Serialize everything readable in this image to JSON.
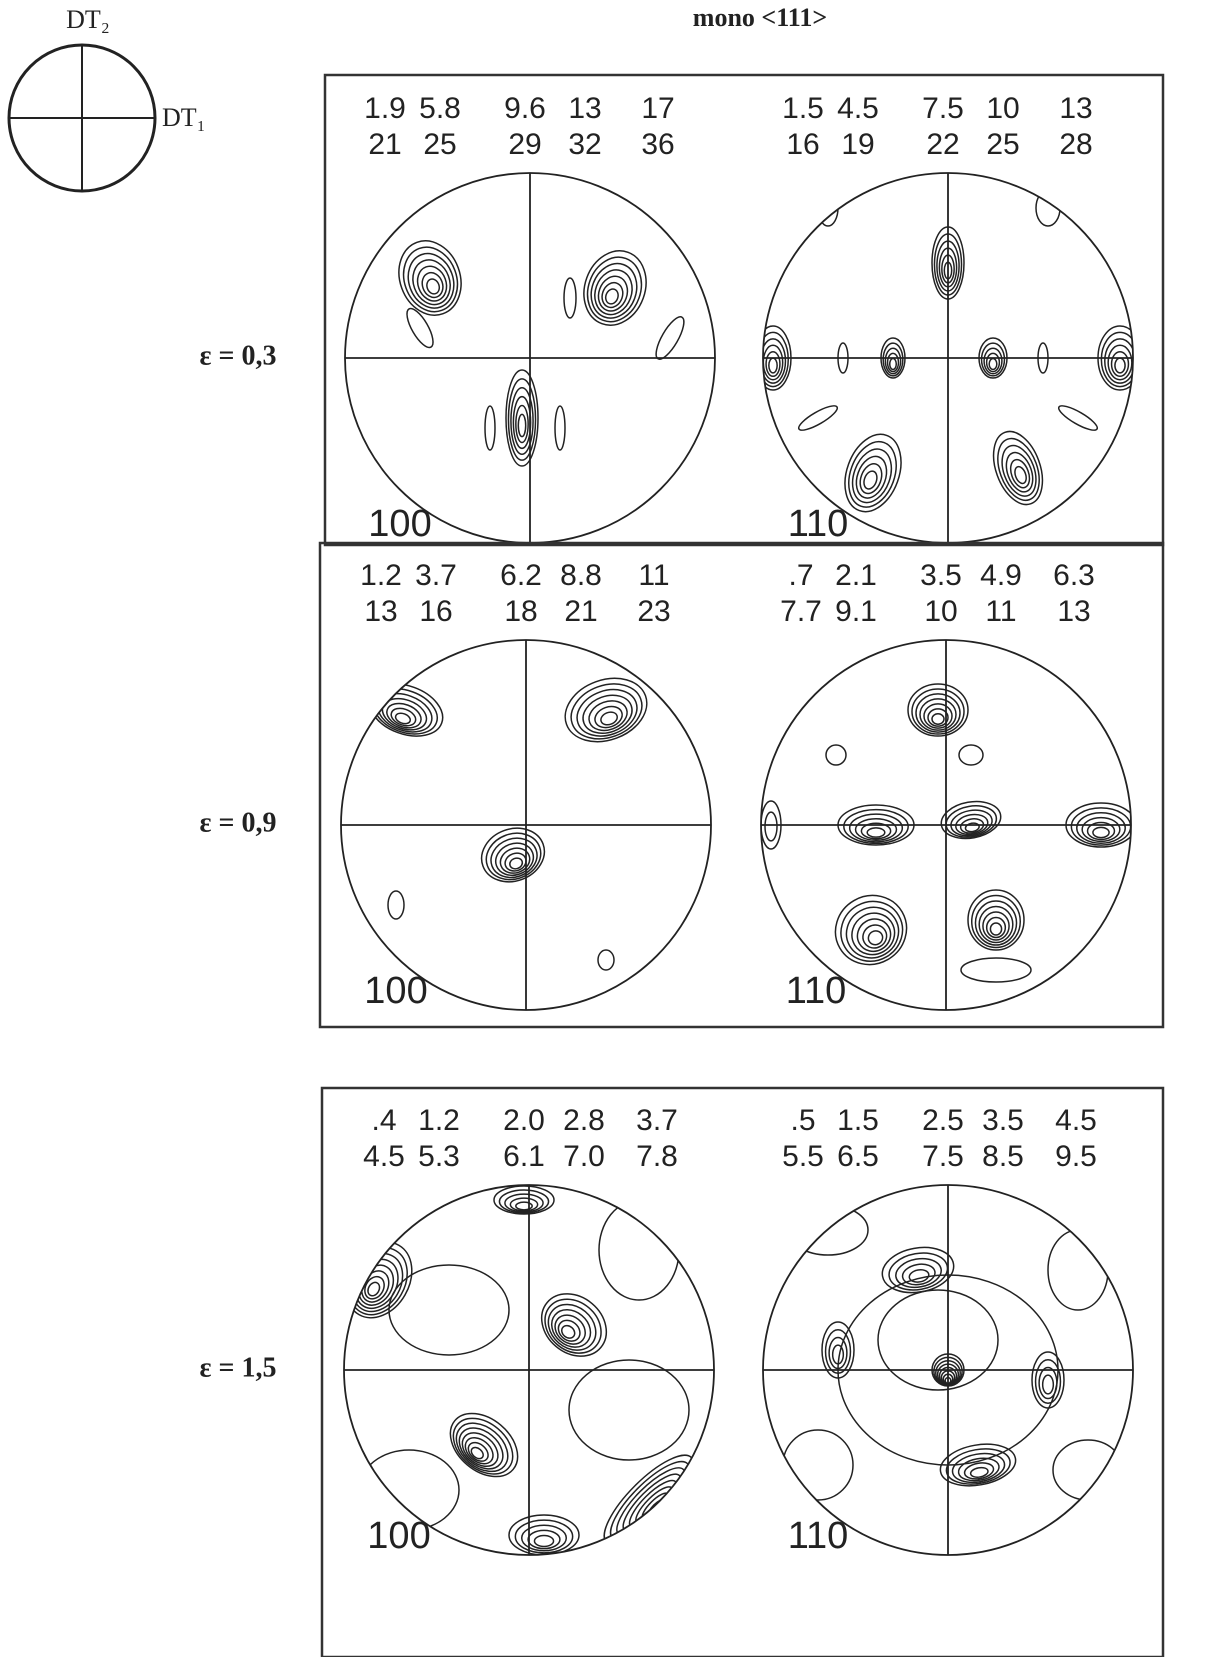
{
  "title": "mono <111>",
  "reference": {
    "top_label": "DT₂",
    "right_label": "DT₁"
  },
  "rows": [
    {
      "strain": "ε = 0,3",
      "panels": [
        {
          "levels": [
            [
              "1.9",
              "5.8",
              "9.6",
              "13",
              "17"
            ],
            [
              "21",
              "25",
              "29",
              "32",
              "36"
            ]
          ],
          "pole": "100"
        },
        {
          "levels": [
            [
              "1.5",
              "4.5",
              "7.5",
              "10",
              "13"
            ],
            [
              "16",
              "19",
              "22",
              "25",
              "28"
            ]
          ],
          "pole": "110"
        }
      ]
    },
    {
      "strain": "ε = 0,9",
      "panels": [
        {
          "levels": [
            [
              "1.2",
              "3.7",
              "6.2",
              "8.8",
              "11"
            ],
            [
              "13",
              "16",
              "18",
              "21",
              "23"
            ]
          ],
          "pole": "100"
        },
        {
          "levels": [
            [
              ".7",
              "2.1",
              "3.5",
              "4.9",
              "6.3"
            ],
            [
              "7.7",
              "9.1",
              "10",
              "11",
              "13"
            ]
          ],
          "pole": "110"
        }
      ]
    },
    {
      "strain": "ε = 1,5",
      "panels": [
        {
          "levels": [
            [
              ".4",
              "1.2",
              "2.0",
              "2.8",
              "3.7"
            ],
            [
              "4.5",
              "5.3",
              "6.1",
              "7.0",
              "7.8"
            ]
          ],
          "pole": "100"
        },
        {
          "levels": [
            [
              ".5",
              "1.5",
              "2.5",
              "3.5",
              "4.5"
            ],
            [
              "5.5",
              "6.5",
              "7.5",
              "8.5",
              "9.5"
            ]
          ],
          "pole": "110"
        }
      ]
    }
  ]
}
